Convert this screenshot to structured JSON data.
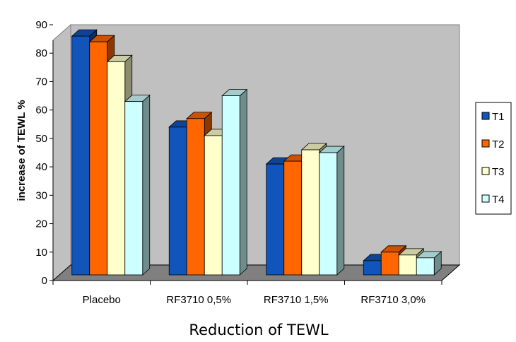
{
  "chart_data": {
    "type": "bar",
    "title": "",
    "xlabel": "Reduction of TEWL",
    "ylabel": "increase of TEWL %",
    "ylim": [
      0,
      90
    ],
    "yticks": [
      0,
      10,
      20,
      30,
      40,
      50,
      60,
      70,
      80,
      90
    ],
    "categories": [
      "Placebo",
      "RF3710 0,5%",
      "RF3710 1,5%",
      "RF3710 3,0%"
    ],
    "series": [
      {
        "name": "T1",
        "color": "#1155bb",
        "values": [
          84,
          52,
          39,
          5
        ]
      },
      {
        "name": "T2",
        "color": "#ff6600",
        "values": [
          82,
          55,
          40,
          8
        ]
      },
      {
        "name": "T3",
        "color": "#ffffcc",
        "values": [
          75,
          49,
          44,
          7
        ]
      },
      {
        "name": "T4",
        "color": "#ccffff",
        "values": [
          61,
          63,
          43,
          6
        ]
      }
    ],
    "legend_position": "right",
    "grid": false,
    "style": "3d-clustered-column",
    "wall_color": "#c0c0c0",
    "floor_color": "#808080"
  }
}
